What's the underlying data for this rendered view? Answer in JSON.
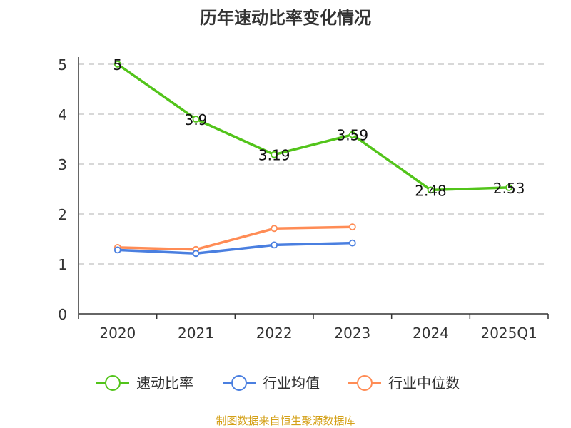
{
  "chart_data": {
    "type": "line",
    "title": "历年速动比率变化情况",
    "categories": [
      "2020",
      "2021",
      "2022",
      "2023",
      "2024",
      "2025Q1"
    ],
    "ylim": [
      0,
      5
    ],
    "yticks": [
      "0",
      "1",
      "2",
      "3",
      "4",
      "5"
    ],
    "grid": true,
    "legend_position": "bottom",
    "series": [
      {
        "name": "速动比率",
        "color": "#52c41a",
        "values": [
          5,
          3.9,
          3.19,
          3.59,
          2.48,
          2.53
        ],
        "labels": [
          "5",
          "3.9",
          "3.19",
          "3.59",
          "2.48",
          "2.53"
        ]
      },
      {
        "name": "行业均值",
        "color": "#4a7fe0",
        "values": [
          1.28,
          1.21,
          1.38,
          1.42,
          null,
          null
        ]
      },
      {
        "name": "行业中位数",
        "color": "#ff8c55",
        "values": [
          1.33,
          1.29,
          1.71,
          1.74,
          null,
          null
        ]
      }
    ]
  },
  "footer": {
    "source": "制图数据来自恒生聚源数据库",
    "color": "#d4a017"
  }
}
